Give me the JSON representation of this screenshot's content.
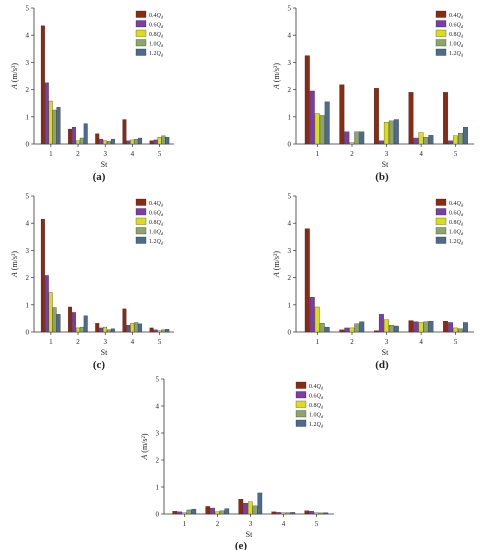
{
  "figure": {
    "legend_labels": [
      "0.4Q_d",
      "0.6Q_d",
      "0.8Q_d",
      "1.0Q_d",
      "1.2Q_d"
    ],
    "legend_display": [
      {
        "prefix": "0.4",
        "q": "Q",
        "sub": "d"
      },
      {
        "prefix": "0.6",
        "q": "Q",
        "sub": "d"
      },
      {
        "prefix": "0.8",
        "q": "Q",
        "sub": "d"
      },
      {
        "prefix": "1.0",
        "q": "Q",
        "sub": "d"
      },
      {
        "prefix": "1.2",
        "q": "Q",
        "sub": "d"
      }
    ],
    "series_colors": [
      "#8b2a12",
      "#7a3fa6",
      "#d9dd1c",
      "#8ca56a",
      "#4f6a8f"
    ],
    "legend_placement": "top-right"
  },
  "chart_data": [
    {
      "panel": "(a)",
      "type": "bar",
      "categories": [
        "1",
        "2",
        "3",
        "4",
        "5"
      ],
      "xlabel": "St",
      "ylabel_base": "A",
      "ylabel_unit": "(m/s²)",
      "ylim": [
        0,
        5
      ],
      "yticks": [
        "0",
        "1",
        "2",
        "3",
        "4",
        "5"
      ],
      "grid": false,
      "series": [
        {
          "name": "0.4Q_d",
          "values": [
            4.35,
            0.55,
            0.38,
            0.9,
            0.12
          ]
        },
        {
          "name": "0.6Q_d",
          "values": [
            2.25,
            0.62,
            0.18,
            0.12,
            0.15
          ]
        },
        {
          "name": "0.8Q_d",
          "values": [
            1.58,
            0.12,
            0.12,
            0.15,
            0.25
          ]
        },
        {
          "name": "1.0Q_d",
          "values": [
            1.25,
            0.22,
            0.1,
            0.18,
            0.3
          ]
        },
        {
          "name": "1.2Q_d",
          "values": [
            1.35,
            0.75,
            0.18,
            0.22,
            0.25
          ]
        }
      ]
    },
    {
      "panel": "(b)",
      "type": "bar",
      "categories": [
        "1",
        "2",
        "3",
        "4",
        "5"
      ],
      "xlabel": "St",
      "ylabel_base": "A",
      "ylabel_unit": "(m/s²)",
      "ylim": [
        0,
        5
      ],
      "yticks": [
        "0",
        "1",
        "2",
        "3",
        "4",
        "5"
      ],
      "grid": false,
      "series": [
        {
          "name": "0.4Q_d",
          "values": [
            3.25,
            2.18,
            2.05,
            1.9,
            1.9
          ]
        },
        {
          "name": "0.6Q_d",
          "values": [
            1.95,
            0.45,
            0.12,
            0.22,
            0.12
          ]
        },
        {
          "name": "0.8Q_d",
          "values": [
            1.12,
            0.05,
            0.8,
            0.42,
            0.3
          ]
        },
        {
          "name": "1.0Q_d",
          "values": [
            1.05,
            0.45,
            0.85,
            0.25,
            0.4
          ]
        },
        {
          "name": "1.2Q_d",
          "values": [
            1.55,
            0.45,
            0.9,
            0.32,
            0.62
          ]
        }
      ]
    },
    {
      "panel": "(c)",
      "type": "bar",
      "categories": [
        "1",
        "2",
        "3",
        "4",
        "5"
      ],
      "xlabel": "St",
      "ylabel_base": "A",
      "ylabel_unit": "(m/s²)",
      "ylim": [
        0,
        5
      ],
      "yticks": [
        "0",
        "1",
        "2",
        "3",
        "4",
        "5"
      ],
      "grid": false,
      "series": [
        {
          "name": "0.4Q_d",
          "values": [
            4.15,
            0.92,
            0.32,
            0.85,
            0.15
          ]
        },
        {
          "name": "0.6Q_d",
          "values": [
            2.08,
            0.72,
            0.15,
            0.25,
            0.08
          ]
        },
        {
          "name": "0.8Q_d",
          "values": [
            1.45,
            0.15,
            0.18,
            0.32,
            0.05
          ]
        },
        {
          "name": "1.0Q_d",
          "values": [
            0.9,
            0.18,
            0.08,
            0.35,
            0.08
          ]
        },
        {
          "name": "1.2Q_d",
          "values": [
            0.65,
            0.6,
            0.12,
            0.3,
            0.1
          ]
        }
      ]
    },
    {
      "panel": "(d)",
      "type": "bar",
      "categories": [
        "1",
        "2",
        "3",
        "4",
        "5"
      ],
      "xlabel": "St",
      "ylabel_base": "A",
      "ylabel_unit": "(m/s²)",
      "ylim": [
        0,
        5
      ],
      "yticks": [
        "0",
        "1",
        "2",
        "3",
        "4",
        "5"
      ],
      "grid": false,
      "series": [
        {
          "name": "0.4Q_d",
          "values": [
            3.8,
            0.08,
            0.05,
            0.42,
            0.4
          ]
        },
        {
          "name": "0.6Q_d",
          "values": [
            1.28,
            0.15,
            0.65,
            0.38,
            0.35
          ]
        },
        {
          "name": "0.8Q_d",
          "values": [
            0.92,
            0.15,
            0.45,
            0.35,
            0.15
          ]
        },
        {
          "name": "1.0Q_d",
          "values": [
            0.32,
            0.3,
            0.25,
            0.38,
            0.12
          ]
        },
        {
          "name": "1.2Q_d",
          "values": [
            0.18,
            0.38,
            0.22,
            0.4,
            0.35
          ]
        }
      ]
    },
    {
      "panel": "(e)",
      "type": "bar",
      "categories": [
        "1",
        "2",
        "3",
        "4",
        "5"
      ],
      "xlabel": "St",
      "ylabel_base": "A",
      "ylabel_unit": "(m/s²)",
      "ylim": [
        0,
        5
      ],
      "yticks": [
        "0",
        "1",
        "2",
        "3",
        "4",
        "5"
      ],
      "grid": false,
      "series": [
        {
          "name": "0.4Q_d",
          "values": [
            0.1,
            0.28,
            0.55,
            0.08,
            0.12
          ]
        },
        {
          "name": "0.6Q_d",
          "values": [
            0.08,
            0.22,
            0.4,
            0.06,
            0.1
          ]
        },
        {
          "name": "0.8Q_d",
          "values": [
            0.05,
            0.08,
            0.45,
            0.05,
            0.05
          ]
        },
        {
          "name": "1.0Q_d",
          "values": [
            0.15,
            0.12,
            0.3,
            0.05,
            0.04
          ]
        },
        {
          "name": "1.2Q_d",
          "values": [
            0.18,
            0.2,
            0.78,
            0.06,
            0.05
          ]
        }
      ]
    }
  ]
}
